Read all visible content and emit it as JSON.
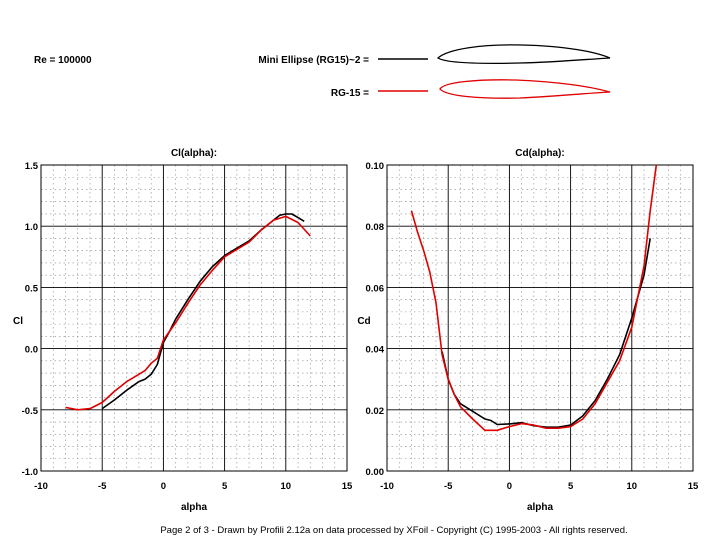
{
  "header": {
    "re_label": "Re = 100000",
    "airfoils": [
      {
        "label": "Mini Ellipse (RG15)~2 =",
        "color": "#000000"
      },
      {
        "label": "RG-15 =",
        "color": "#e00000"
      }
    ]
  },
  "footer": {
    "text": "Page 2 of 3   -   Drawn by Profili 2.12a on data processed by  XFoil - Copyright (C) 1995-2003 - All rights reserved."
  },
  "colors": {
    "series_a": "#000000",
    "series_b": "#e00000",
    "grid": "#000000",
    "minor_grid": "#888888"
  },
  "chart_data": [
    {
      "type": "line",
      "title": "Cl(alpha):",
      "xlabel": "alpha",
      "ylabel": "Cl",
      "xlim": [
        -10,
        15
      ],
      "ylim": [
        -1.0,
        1.5
      ],
      "xticks": [
        "-10",
        "-5",
        "0",
        "5",
        "10",
        "15"
      ],
      "yticks": [
        "-1.0",
        "-0.5",
        "0.0",
        "0.5",
        "1.0",
        "1.5"
      ],
      "grid": true,
      "series": [
        {
          "name": "Mini Ellipse (RG15)~2",
          "x": [
            -5.0,
            -4.0,
            -3.0,
            -2.0,
            -1.5,
            -1.0,
            -0.5,
            0.0,
            0.5,
            1.0,
            2.0,
            3.0,
            4.0,
            5.0,
            6.0,
            7.0,
            8.0,
            9.0,
            9.5,
            10.0,
            10.5,
            11.0,
            11.5
          ],
          "y": [
            -0.49,
            -0.42,
            -0.34,
            -0.27,
            -0.25,
            -0.21,
            -0.13,
            0.05,
            0.14,
            0.24,
            0.4,
            0.55,
            0.67,
            0.76,
            0.82,
            0.88,
            0.97,
            1.05,
            1.09,
            1.1,
            1.1,
            1.07,
            1.04
          ]
        },
        {
          "name": "RG-15",
          "x": [
            -8.0,
            -7.0,
            -6.0,
            -5.0,
            -4.0,
            -3.0,
            -2.0,
            -1.5,
            -1.0,
            -0.5,
            0.0,
            1.0,
            2.0,
            3.0,
            4.0,
            5.0,
            6.0,
            7.0,
            8.0,
            9.0,
            10.0,
            11.0,
            12.0
          ],
          "y": [
            -0.48,
            -0.5,
            -0.49,
            -0.44,
            -0.35,
            -0.27,
            -0.21,
            -0.18,
            -0.12,
            -0.08,
            0.07,
            0.21,
            0.37,
            0.52,
            0.64,
            0.75,
            0.81,
            0.87,
            0.97,
            1.05,
            1.08,
            1.03,
            0.92
          ]
        }
      ]
    },
    {
      "type": "line",
      "title": "Cd(alpha):",
      "xlabel": "alpha",
      "ylabel": "Cd",
      "xlim": [
        -10,
        15
      ],
      "ylim": [
        0.0,
        0.1
      ],
      "xticks": [
        "-10",
        "-5",
        "0",
        "5",
        "10",
        "15"
      ],
      "yticks": [
        "0.00",
        "0.02",
        "0.04",
        "0.06",
        "0.08",
        "0.10"
      ],
      "grid": true,
      "series": [
        {
          "name": "Mini Ellipse (RG15)~2",
          "x": [
            -5.5,
            -5.0,
            -4.5,
            -4.0,
            -3.0,
            -2.0,
            -1.5,
            -1.0,
            0.0,
            1.0,
            2.0,
            3.0,
            4.0,
            5.0,
            6.0,
            7.0,
            8.0,
            9.0,
            10.0,
            11.0,
            11.5
          ],
          "y": [
            0.039,
            0.03,
            0.025,
            0.022,
            0.0195,
            0.017,
            0.0165,
            0.0152,
            0.0154,
            0.0158,
            0.0148,
            0.0143,
            0.0143,
            0.015,
            0.018,
            0.023,
            0.03,
            0.038,
            0.05,
            0.064,
            0.076
          ]
        },
        {
          "name": "RG-15",
          "x": [
            -8.0,
            -7.5,
            -7.0,
            -6.5,
            -6.0,
            -5.5,
            -5.0,
            -4.5,
            -4.0,
            -3.0,
            -2.0,
            -1.0,
            0.0,
            1.0,
            2.0,
            3.0,
            4.0,
            5.0,
            6.0,
            7.0,
            8.0,
            9.0,
            10.0,
            11.0,
            11.5,
            12.0
          ],
          "y": [
            0.085,
            0.078,
            0.072,
            0.065,
            0.055,
            0.038,
            0.03,
            0.025,
            0.021,
            0.017,
            0.0133,
            0.0133,
            0.0145,
            0.0155,
            0.015,
            0.014,
            0.014,
            0.0145,
            0.017,
            0.022,
            0.029,
            0.036,
            0.047,
            0.067,
            0.085,
            0.102
          ]
        }
      ]
    }
  ]
}
